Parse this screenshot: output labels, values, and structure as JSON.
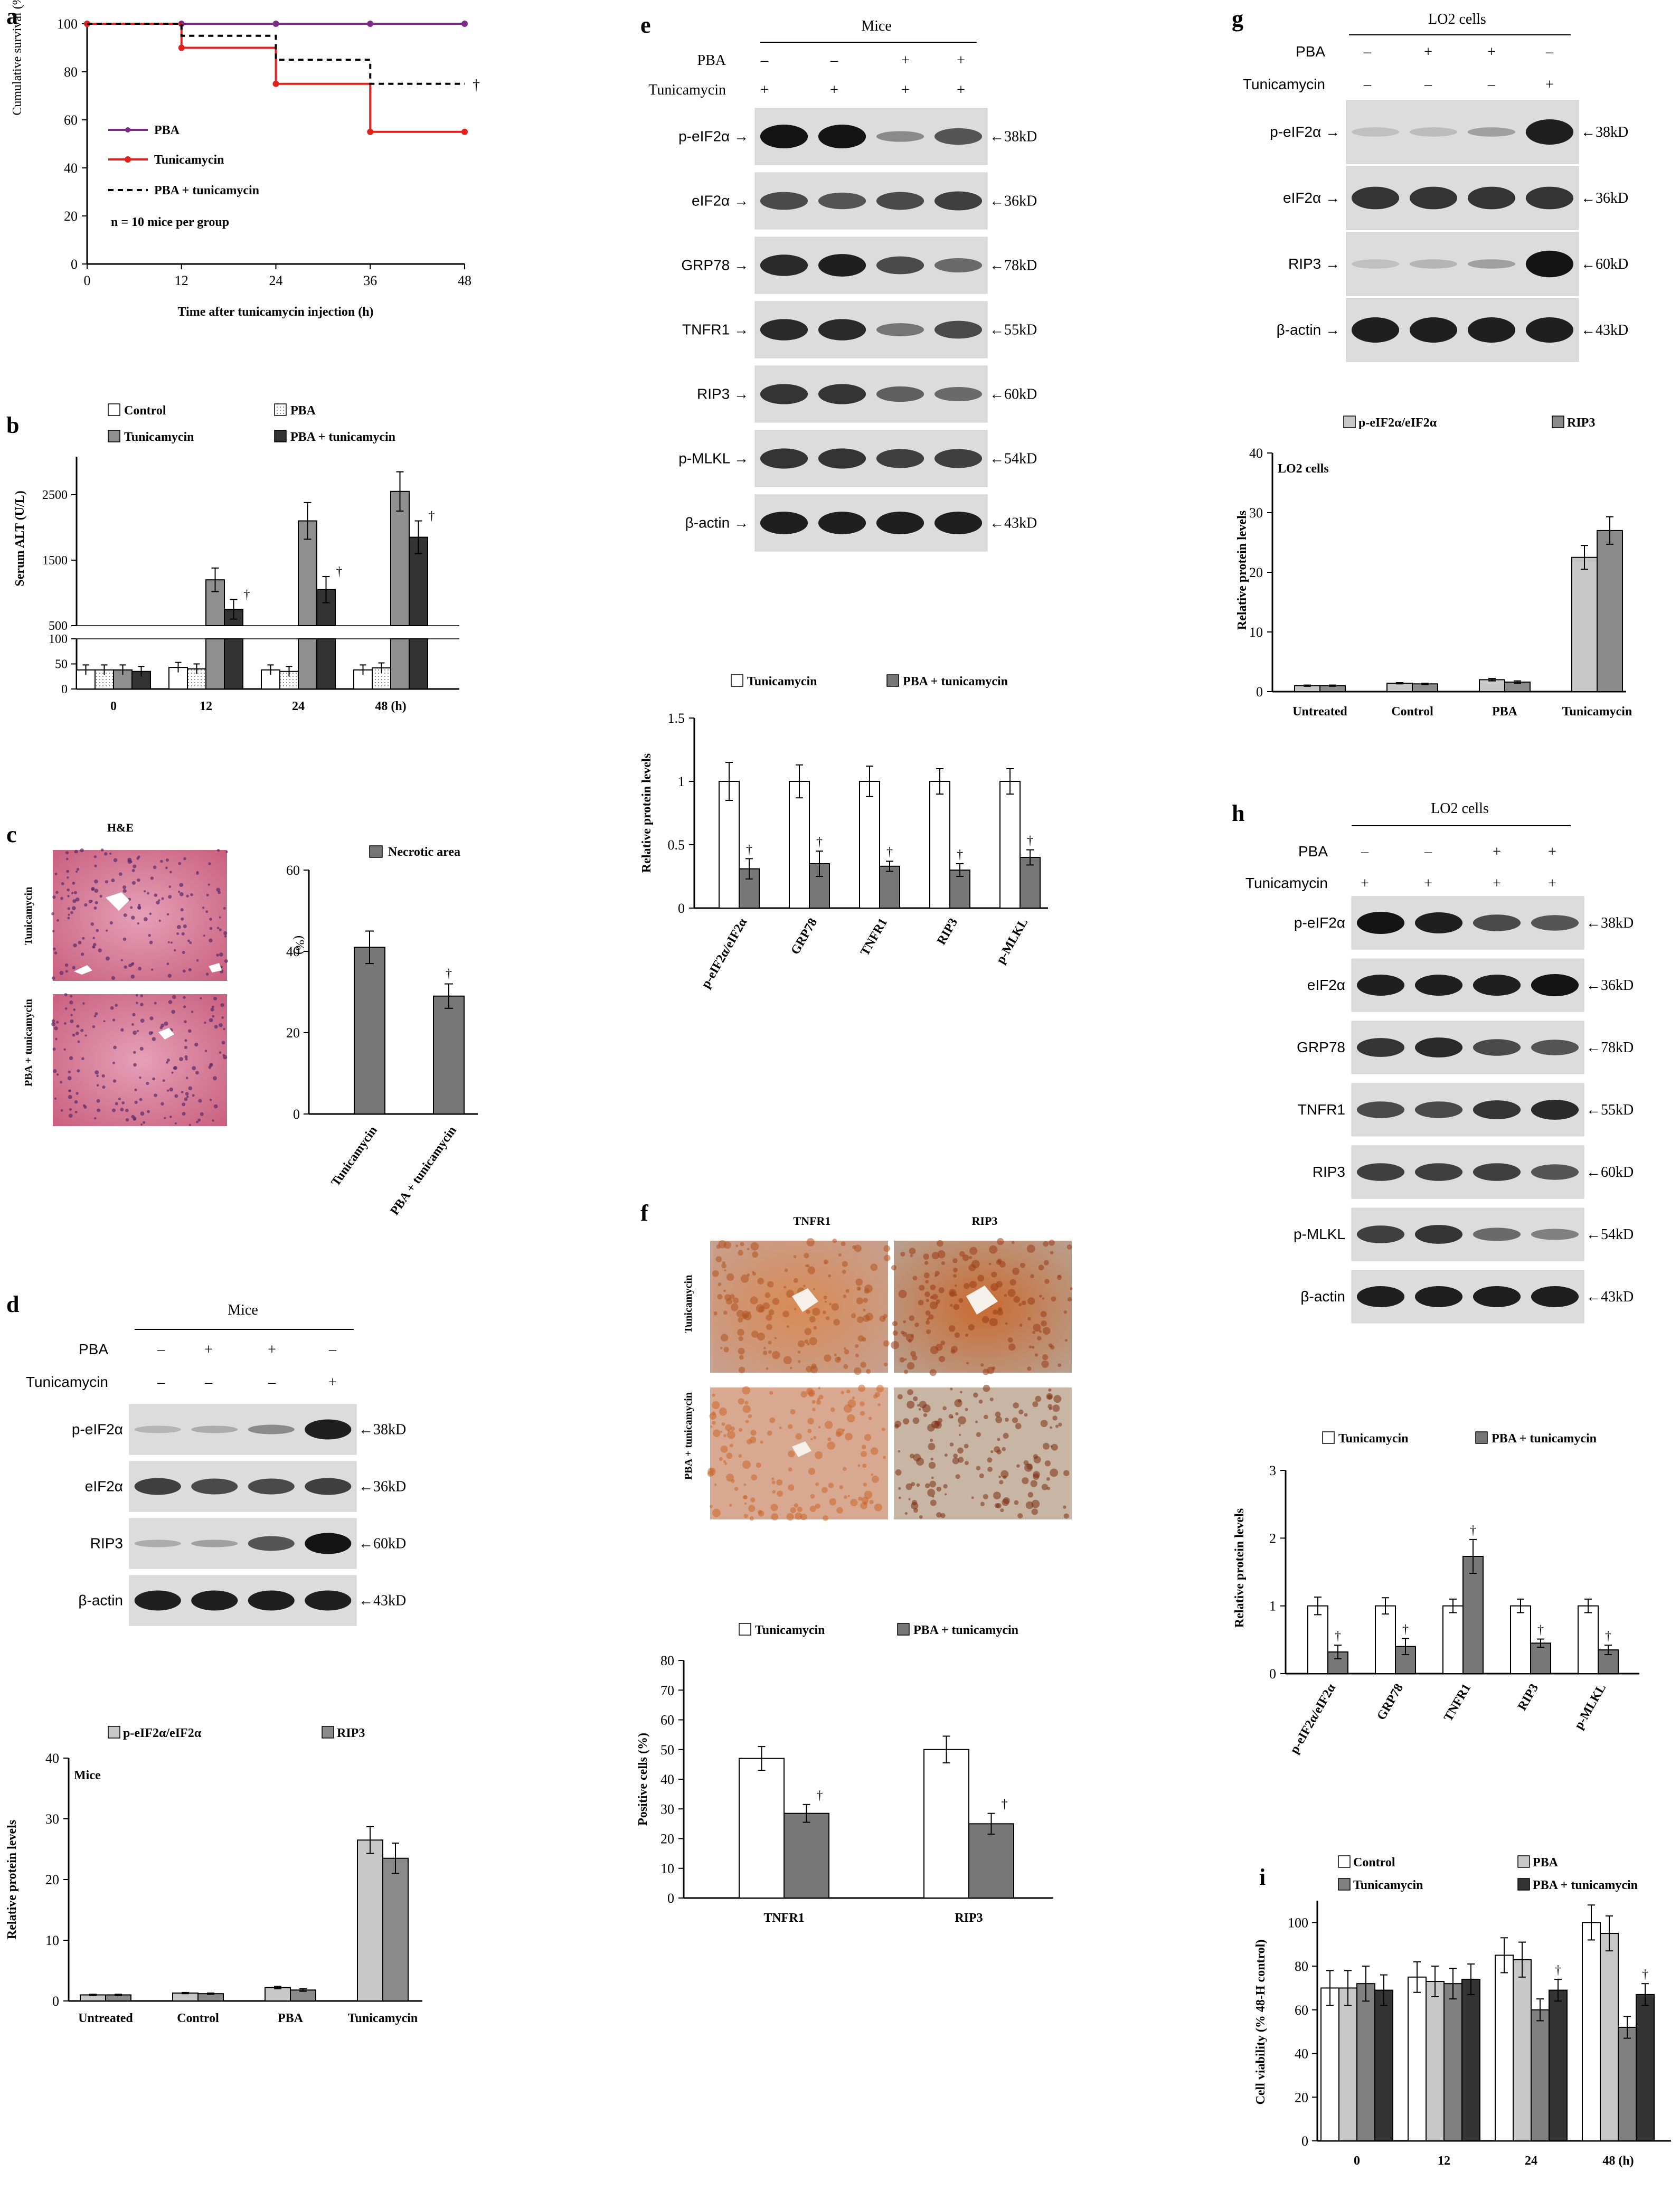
{
  "figure": {
    "panel_letters": [
      "a",
      "b",
      "c",
      "d",
      "e",
      "f",
      "g",
      "h",
      "i"
    ],
    "colors": {
      "pba": "#7b2a86",
      "tunicamycin": "#e0211c",
      "dark_bar": "#333333",
      "grey_bar": "#777777",
      "light_bar": "#c8c8c8",
      "he_stain": "#d8789a",
      "ihc_brown": "#b65a2a"
    }
  },
  "panel_a": {
    "letter": "a",
    "chart_data": {
      "type": "line",
      "ylabel": "Cumulative survival (%)",
      "xlabel": "Time after tunicamycin injection (h)",
      "xticks": [
        "0",
        "12",
        "24",
        "36",
        "48"
      ],
      "yticks": [
        "0",
        "20",
        "40",
        "60",
        "80",
        "100"
      ],
      "xlim": [
        0,
        48
      ],
      "ylim": [
        0,
        100
      ],
      "series": [
        {
          "name": "PBA",
          "x": [
            0,
            12,
            24,
            36,
            48
          ],
          "values": [
            100,
            100,
            100,
            100,
            100
          ]
        },
        {
          "name": "Tunicamycin",
          "x": [
            0,
            12,
            24,
            36,
            48
          ],
          "values": [
            100,
            90,
            75,
            55,
            55
          ]
        },
        {
          "name": "PBA + tunicamycin",
          "x": [
            0,
            12,
            24,
            36,
            48
          ],
          "values": [
            100,
            95,
            85,
            75,
            75
          ]
        }
      ],
      "note": "n = 10 mice per group",
      "dagger": "†"
    }
  },
  "panel_b": {
    "letter": "b",
    "chart_data": {
      "type": "bar",
      "ylabel": "Serum ALT (U/L)",
      "categories": [
        "0",
        "12",
        "24",
        "48 (h)"
      ],
      "yticks_upper": [
        "500",
        "1500",
        "2500"
      ],
      "yticks_lower": [
        "0",
        "50",
        "100"
      ],
      "series": [
        {
          "name": "Control",
          "values": [
            38,
            43,
            38,
            38
          ],
          "errors": [
            10,
            10,
            10,
            10
          ]
        },
        {
          "name": "PBA",
          "values": [
            38,
            40,
            35,
            42
          ],
          "errors": [
            10,
            10,
            10,
            10
          ]
        },
        {
          "name": "Tunicamycin",
          "values": [
            38,
            1200,
            2100,
            2550
          ],
          "errors": [
            10,
            180,
            280,
            300
          ]
        },
        {
          "name": "PBA + tunicamycin",
          "values": [
            35,
            750,
            1050,
            1850
          ],
          "errors": [
            10,
            150,
            200,
            250
          ]
        }
      ],
      "dagger": "†"
    }
  },
  "panel_c": {
    "letter": "c",
    "image_title": "H&E",
    "row_labels": [
      "Tunicamycin",
      "PBA + tunicamycin"
    ],
    "chart_data": {
      "type": "bar",
      "legend": "Necrotic area",
      "ylabel": "(%)",
      "categories": [
        "Tunicamycin",
        "PBA + tunicamycin"
      ],
      "values": [
        41,
        29
      ],
      "errors": [
        4,
        3
      ],
      "yticks": [
        "0",
        "20",
        "40",
        "60"
      ],
      "ylim": [
        0,
        60
      ],
      "dagger": "†"
    }
  },
  "panel_d": {
    "letter": "d",
    "group_title": "Mice",
    "treatments": [
      {
        "label": "PBA",
        "signs": [
          "–",
          "+",
          "+",
          "–"
        ]
      },
      {
        "label": "Tunicamycin",
        "signs": [
          "–",
          "–",
          "–",
          "+"
        ]
      }
    ],
    "blots": [
      {
        "label": "p-eIF2α",
        "size": "←38kD"
      },
      {
        "label": "eIF2α",
        "size": "←36kD"
      },
      {
        "label": "RIP3",
        "size": "←60kD"
      },
      {
        "label": "β-actin",
        "size": "←43kD"
      }
    ],
    "chart_data": {
      "type": "bar",
      "inner_title": "Mice",
      "ylabel": "Relative protein levels",
      "categories": [
        "Untreated",
        "Control",
        "PBA",
        "Tunicamycin"
      ],
      "series": [
        {
          "name": "p-eIF2α/eIF2α",
          "values": [
            1,
            1.3,
            2.2,
            26.5
          ],
          "errors": [
            0.1,
            0.1,
            0.2,
            2.2
          ]
        },
        {
          "name": "RIP3",
          "values": [
            1,
            1.2,
            1.8,
            23.5
          ],
          "errors": [
            0.1,
            0.1,
            0.2,
            2.5
          ]
        }
      ],
      "yticks": [
        "0",
        "10",
        "20",
        "30",
        "40"
      ],
      "ylim": [
        0,
        40
      ]
    }
  },
  "panel_e": {
    "letter": "e",
    "group_title": "Mice",
    "treatments": [
      {
        "label": "PBA",
        "signs": [
          "–",
          "–",
          "+",
          "+"
        ]
      },
      {
        "label": "Tunicamycin",
        "signs": [
          "+",
          "+",
          "+",
          "+"
        ]
      }
    ],
    "blots": [
      {
        "label": "p-eIF2α →",
        "size": "←38kD"
      },
      {
        "label": "eIF2α →",
        "size": "←36kD"
      },
      {
        "label": "GRP78 →",
        "size": "←78kD"
      },
      {
        "label": "TNFR1 →",
        "size": "←55kD"
      },
      {
        "label": "RIP3 →",
        "size": "←60kD"
      },
      {
        "label": "p-MLKL →",
        "size": "←54kD"
      },
      {
        "label": "β-actin →",
        "size": "←43kD"
      }
    ],
    "chart_data": {
      "type": "bar",
      "ylabel": "Relative protein levels",
      "categories": [
        "p-eIF2α/eIF2α",
        "GRP78",
        "TNFR1",
        "RIP3",
        "p-MLKL"
      ],
      "series": [
        {
          "name": "Tunicamycin",
          "values": [
            1,
            1,
            1,
            1,
            1
          ],
          "errors": [
            0.15,
            0.13,
            0.12,
            0.1,
            0.1
          ]
        },
        {
          "name": "PBA + tunicamycin",
          "values": [
            0.31,
            0.35,
            0.33,
            0.3,
            0.4
          ],
          "errors": [
            0.08,
            0.1,
            0.04,
            0.05,
            0.06
          ]
        }
      ],
      "yticks": [
        "0",
        "0.5",
        "1",
        "1.5"
      ],
      "ylim": [
        0,
        1.5
      ],
      "dagger": "†"
    }
  },
  "panel_f": {
    "letter": "f",
    "col_labels": [
      "TNFR1",
      "RIP3"
    ],
    "row_labels": [
      "Tunicamycin",
      "PBA + tunicamycin"
    ],
    "chart_data": {
      "type": "bar",
      "ylabel": "Positive cells (%)",
      "categories": [
        "TNFR1",
        "RIP3"
      ],
      "series": [
        {
          "name": "Tunicamycin",
          "values": [
            47,
            50
          ],
          "errors": [
            4,
            4.5
          ]
        },
        {
          "name": "PBA + tunicamycin",
          "values": [
            28.5,
            25
          ],
          "errors": [
            3,
            3.5
          ]
        }
      ],
      "yticks": [
        "0",
        "10",
        "20",
        "30",
        "40",
        "50",
        "60",
        "70",
        "80"
      ],
      "ylim": [
        0,
        80
      ],
      "dagger": "†"
    }
  },
  "panel_g": {
    "letter": "g",
    "group_title": "LO2 cells",
    "treatments": [
      {
        "label": "PBA",
        "signs": [
          "–",
          "+",
          "+",
          "–"
        ]
      },
      {
        "label": "Tunicamycin",
        "signs": [
          "–",
          "–",
          "–",
          "+"
        ]
      }
    ],
    "blots": [
      {
        "label": "p-eIF2α →",
        "size": "←38kD"
      },
      {
        "label": "eIF2α →",
        "size": "←36kD"
      },
      {
        "label": "RIP3 →",
        "size": "←60kD"
      },
      {
        "label": "β-actin →",
        "size": "←43kD"
      }
    ],
    "chart_data": {
      "type": "bar",
      "inner_title": "LO2 cells",
      "ylabel": "Relative protein levels",
      "categories": [
        "Untreated",
        "Control",
        "PBA",
        "Tunicamycin"
      ],
      "series": [
        {
          "name": "p-eIF2α/eIF2α",
          "values": [
            1,
            1.4,
            2,
            22.5
          ],
          "errors": [
            0.1,
            0.1,
            0.2,
            2
          ]
        },
        {
          "name": "RIP3",
          "values": [
            1,
            1.3,
            1.6,
            27
          ],
          "errors": [
            0.1,
            0.1,
            0.2,
            2.3
          ]
        }
      ],
      "yticks": [
        "0",
        "10",
        "20",
        "30",
        "40"
      ],
      "ylim": [
        0,
        40
      ]
    }
  },
  "panel_h": {
    "letter": "h",
    "group_title": "LO2 cells",
    "treatments": [
      {
        "label": "PBA",
        "signs": [
          "–",
          "–",
          "+",
          "+"
        ]
      },
      {
        "label": "Tunicamycin",
        "signs": [
          "+",
          "+",
          "+",
          "+"
        ]
      }
    ],
    "blots": [
      {
        "label": "p-eIF2α",
        "size": "←38kD"
      },
      {
        "label": "eIF2α",
        "size": "←36kD"
      },
      {
        "label": "GRP78",
        "size": "←78kD"
      },
      {
        "label": "TNFR1",
        "size": "←55kD"
      },
      {
        "label": "RIP3",
        "size": "←60kD"
      },
      {
        "label": "p-MLKL",
        "size": "←54kD"
      },
      {
        "label": "β-actin",
        "size": "←43kD"
      }
    ],
    "chart_data": {
      "type": "bar",
      "ylabel": "Relative protein levels",
      "categories": [
        "p-eIF2α/eIF2α",
        "GRP78",
        "TNFR1",
        "RIP3",
        "p-MLKL"
      ],
      "series": [
        {
          "name": "Tunicamycin",
          "values": [
            1,
            1,
            1,
            1,
            1
          ],
          "errors": [
            0.13,
            0.12,
            0.1,
            0.1,
            0.1
          ]
        },
        {
          "name": "PBA + tunicamycin",
          "values": [
            0.32,
            0.4,
            1.73,
            0.45,
            0.35
          ],
          "errors": [
            0.1,
            0.12,
            0.25,
            0.06,
            0.07
          ]
        }
      ],
      "yticks": [
        "0",
        "1",
        "2",
        "3"
      ],
      "ylim": [
        0,
        3
      ],
      "dagger": "†"
    }
  },
  "panel_i": {
    "letter": "i",
    "chart_data": {
      "type": "bar",
      "ylabel": "Cell viability (% 48-H control)",
      "categories": [
        "0",
        "12",
        "24",
        "48 (h)"
      ],
      "series": [
        {
          "name": "Control",
          "values": [
            70,
            75,
            85,
            100
          ],
          "errors": [
            8,
            7,
            8,
            8
          ]
        },
        {
          "name": "PBA",
          "values": [
            70,
            73,
            83,
            95
          ],
          "errors": [
            8,
            7,
            8,
            8
          ]
        },
        {
          "name": "Tunicamycin",
          "values": [
            72,
            72,
            60,
            52
          ],
          "errors": [
            8,
            7,
            5,
            5
          ]
        },
        {
          "name": "PBA + tunicamycin",
          "values": [
            69,
            74,
            69,
            67
          ],
          "errors": [
            7,
            7,
            5,
            5
          ]
        }
      ],
      "yticks": [
        "0",
        "20",
        "40",
        "60",
        "80",
        "100"
      ],
      "ylim": [
        0,
        110
      ],
      "dagger": "†"
    }
  }
}
